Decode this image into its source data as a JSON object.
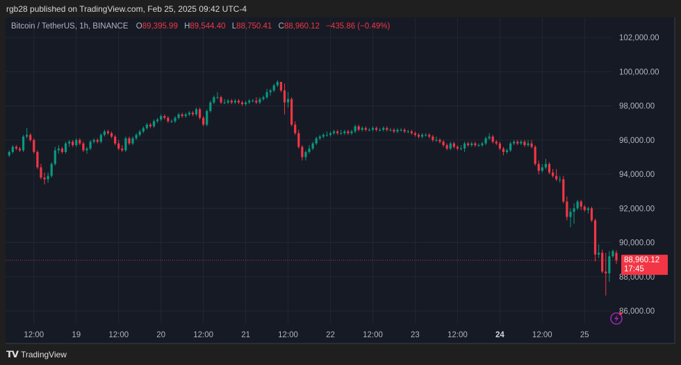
{
  "header": {
    "published": "rgb28 published on TradingView.com, Feb 25, 2025 09:42 UTC-4"
  },
  "legend": {
    "symbol": "Bitcoin / TetherUS, 1h, BINANCE",
    "o_label": "O",
    "o": "89,395.99",
    "h_label": "H",
    "h": "89,544.40",
    "l_label": "L",
    "l": "88,750.41",
    "c_label": "C",
    "c": "88,960.12",
    "change": "−435.86 (−0.49%)"
  },
  "price_label": {
    "price": "88,960.12",
    "countdown": "17:45"
  },
  "footer": {
    "brand": "TradingView",
    "logo_text": "TV"
  },
  "colors": {
    "up": "#089981",
    "down": "#f23645",
    "background": "#161a25",
    "grid": "#232734",
    "alert_icon": "#9c27b0"
  },
  "icons": {
    "alert": "lightning-alert-icon"
  },
  "chart_data": {
    "type": "candlestick",
    "title": "Bitcoin / TetherUS, 1h, BINANCE",
    "interval": "1h",
    "ylim": [
      85000,
      103000
    ],
    "y_ticks": [
      86000,
      88000,
      90000,
      92000,
      94000,
      96000,
      98000,
      100000,
      102000
    ],
    "y_tick_labels": [
      "86,000.00",
      "88,000.00",
      "90,000.00",
      "92,000.00",
      "94,000.00",
      "96,000.00",
      "98,000.00",
      "100,000.00",
      "102,000.00"
    ],
    "x_tick_labels": [
      "12:00",
      "19",
      "12:00",
      "20",
      "12:00",
      "21",
      "12:00",
      "22",
      "12:00",
      "23",
      "12:00",
      "24",
      "12:00",
      "25"
    ],
    "x_tick_bold": "24",
    "grid": true,
    "last_price": 88960.12,
    "ohlc": [
      [
        95100,
        95400,
        95000,
        95300
      ],
      [
        95300,
        95700,
        95200,
        95600
      ],
      [
        95600,
        95700,
        95400,
        95500
      ],
      [
        95500,
        95600,
        95300,
        95400
      ],
      [
        95400,
        96300,
        95300,
        96200
      ],
      [
        96200,
        96700,
        96100,
        96300
      ],
      [
        96300,
        96400,
        95900,
        96000
      ],
      [
        96000,
        96100,
        95200,
        95300
      ],
      [
        95300,
        95400,
        94300,
        94400
      ],
      [
        94400,
        94600,
        93700,
        93800
      ],
      [
        93800,
        94100,
        93400,
        93700
      ],
      [
        93700,
        94100,
        93500,
        93900
      ],
      [
        93900,
        94700,
        93800,
        94600
      ],
      [
        94600,
        95600,
        94500,
        95400
      ],
      [
        95400,
        95700,
        95200,
        95500
      ],
      [
        95500,
        95600,
        95200,
        95300
      ],
      [
        95300,
        95900,
        95200,
        95800
      ],
      [
        95800,
        96000,
        95600,
        95900
      ],
      [
        95900,
        96000,
        95600,
        95700
      ],
      [
        95700,
        96100,
        95600,
        96000
      ],
      [
        96000,
        96100,
        95700,
        95800
      ],
      [
        95800,
        95900,
        95300,
        95400
      ],
      [
        95400,
        95600,
        95200,
        95500
      ],
      [
        95500,
        96000,
        95400,
        95900
      ],
      [
        95900,
        96100,
        95800,
        96000
      ],
      [
        96000,
        96100,
        95800,
        95900
      ],
      [
        95900,
        96400,
        95800,
        96300
      ],
      [
        96300,
        96600,
        96200,
        96500
      ],
      [
        96500,
        96600,
        96300,
        96400
      ],
      [
        96400,
        96500,
        96100,
        96200
      ],
      [
        96200,
        96300,
        95700,
        95800
      ],
      [
        95800,
        96000,
        95400,
        95500
      ],
      [
        95500,
        95700,
        95300,
        95400
      ],
      [
        95400,
        96200,
        95300,
        96100
      ],
      [
        96100,
        96200,
        95700,
        95800
      ],
      [
        95800,
        96200,
        95700,
        96100
      ],
      [
        96100,
        96400,
        96000,
        96300
      ],
      [
        96300,
        96600,
        96200,
        96500
      ],
      [
        96500,
        96800,
        96400,
        96700
      ],
      [
        96700,
        97000,
        96600,
        96900
      ],
      [
        96900,
        97000,
        96700,
        96800
      ],
      [
        96800,
        97200,
        96700,
        97100
      ],
      [
        97100,
        97300,
        97000,
        97200
      ],
      [
        97200,
        97500,
        97100,
        97400
      ],
      [
        97400,
        97500,
        97200,
        97300
      ],
      [
        97300,
        97400,
        97000,
        97100
      ],
      [
        97100,
        97200,
        97000,
        97100
      ],
      [
        97100,
        97400,
        97000,
        97300
      ],
      [
        97300,
        97600,
        97200,
        97500
      ],
      [
        97500,
        97600,
        97300,
        97400
      ],
      [
        97400,
        97600,
        97300,
        97500
      ],
      [
        97500,
        97700,
        97400,
        97600
      ],
      [
        97600,
        97700,
        97400,
        97500
      ],
      [
        97500,
        97900,
        97400,
        97800
      ],
      [
        97800,
        97900,
        97200,
        97300
      ],
      [
        97300,
        97400,
        96800,
        96900
      ],
      [
        96900,
        97800,
        96800,
        97700
      ],
      [
        97700,
        98300,
        97600,
        98200
      ],
      [
        98200,
        98600,
        98100,
        98500
      ],
      [
        98500,
        98800,
        98400,
        98500
      ],
      [
        98500,
        98600,
        98100,
        98200
      ],
      [
        98200,
        98400,
        98100,
        98200
      ],
      [
        98200,
        98400,
        98100,
        98300
      ],
      [
        98300,
        98400,
        98100,
        98200
      ],
      [
        98200,
        98400,
        98100,
        98300
      ],
      [
        98300,
        98400,
        98100,
        98200
      ],
      [
        98200,
        98300,
        98000,
        98100
      ],
      [
        98100,
        98300,
        98000,
        98200
      ],
      [
        98200,
        98400,
        98100,
        98300
      ],
      [
        98300,
        98400,
        98200,
        98300
      ],
      [
        98300,
        98500,
        98100,
        98200
      ],
      [
        98200,
        98500,
        98100,
        98400
      ],
      [
        98400,
        98600,
        98300,
        98500
      ],
      [
        98500,
        99000,
        98400,
        98800
      ],
      [
        98800,
        99000,
        98600,
        98900
      ],
      [
        98900,
        99300,
        98800,
        99200
      ],
      [
        99200,
        99500,
        99100,
        99400
      ],
      [
        99400,
        99400,
        98800,
        98900
      ],
      [
        98900,
        99300,
        97500,
        98200
      ],
      [
        98200,
        98800,
        97900,
        98400
      ],
      [
        98400,
        98500,
        96800,
        96900
      ],
      [
        96900,
        97100,
        96300,
        96400
      ],
      [
        96400,
        96600,
        95500,
        95600
      ],
      [
        95600,
        95700,
        94800,
        95000
      ],
      [
        95000,
        95400,
        94800,
        95300
      ],
      [
        95300,
        95700,
        95200,
        95500
      ],
      [
        95500,
        95900,
        95400,
        95800
      ],
      [
        95800,
        96200,
        95700,
        96100
      ],
      [
        96100,
        96300,
        96000,
        96200
      ],
      [
        96200,
        96400,
        96100,
        96300
      ],
      [
        96300,
        96500,
        96200,
        96300
      ],
      [
        96300,
        96500,
        96200,
        96400
      ],
      [
        96400,
        96600,
        96300,
        96500
      ],
      [
        96500,
        96600,
        96300,
        96400
      ],
      [
        96400,
        96600,
        96300,
        96400
      ],
      [
        96400,
        96600,
        96300,
        96500
      ],
      [
        96500,
        96600,
        96300,
        96400
      ],
      [
        96400,
        96600,
        96300,
        96500
      ],
      [
        96500,
        96900,
        96400,
        96800
      ],
      [
        96800,
        96900,
        96500,
        96600
      ],
      [
        96600,
        96800,
        96500,
        96700
      ],
      [
        96700,
        96800,
        96500,
        96600
      ],
      [
        96600,
        96700,
        96500,
        96600
      ],
      [
        96600,
        96800,
        96500,
        96700
      ],
      [
        96700,
        96800,
        96500,
        96600
      ],
      [
        96600,
        96700,
        96500,
        96600
      ],
      [
        96600,
        96800,
        96500,
        96700
      ],
      [
        96700,
        96800,
        96500,
        96600
      ],
      [
        96600,
        96700,
        96500,
        96600
      ],
      [
        96600,
        96700,
        96400,
        96500
      ],
      [
        96500,
        96700,
        96400,
        96600
      ],
      [
        96600,
        96700,
        96500,
        96600
      ],
      [
        96600,
        96700,
        96400,
        96500
      ],
      [
        96500,
        96600,
        96400,
        96500
      ],
      [
        96500,
        96600,
        96300,
        96400
      ],
      [
        96400,
        96500,
        96200,
        96300
      ],
      [
        96300,
        96400,
        96100,
        96200
      ],
      [
        96200,
        96400,
        96100,
        96300
      ],
      [
        96300,
        96400,
        96200,
        96300
      ],
      [
        96300,
        96400,
        96100,
        96200
      ],
      [
        96200,
        96300,
        95900,
        96000
      ],
      [
        96000,
        96200,
        95900,
        96000
      ],
      [
        96000,
        96100,
        95800,
        95900
      ],
      [
        95900,
        96000,
        95600,
        95700
      ],
      [
        95700,
        95800,
        95400,
        95500
      ],
      [
        95500,
        95900,
        95400,
        95800
      ],
      [
        95800,
        95900,
        95500,
        95600
      ],
      [
        95600,
        95700,
        95400,
        95500
      ],
      [
        95500,
        95700,
        95400,
        95500
      ],
      [
        95500,
        95900,
        95300,
        95800
      ],
      [
        95800,
        95900,
        95600,
        95700
      ],
      [
        95700,
        95900,
        95600,
        95800
      ],
      [
        95800,
        95900,
        95600,
        95700
      ],
      [
        95700,
        95800,
        95600,
        95700
      ],
      [
        95700,
        95900,
        95600,
        95800
      ],
      [
        95800,
        96200,
        95700,
        96100
      ],
      [
        96100,
        96400,
        96000,
        96200
      ],
      [
        96200,
        96300,
        95800,
        95900
      ],
      [
        95900,
        96000,
        95700,
        95800
      ],
      [
        95800,
        95900,
        95400,
        95500
      ],
      [
        95500,
        95600,
        95100,
        95300
      ],
      [
        95300,
        95500,
        95200,
        95400
      ],
      [
        95400,
        95900,
        95300,
        95800
      ],
      [
        95800,
        96000,
        95700,
        95900
      ],
      [
        95900,
        96000,
        95700,
        95800
      ],
      [
        95800,
        96000,
        95700,
        95900
      ],
      [
        95900,
        96000,
        95600,
        95700
      ],
      [
        95700,
        96000,
        95600,
        95800
      ],
      [
        95800,
        96000,
        95500,
        95600
      ],
      [
        95600,
        95700,
        94500,
        94600
      ],
      [
        94600,
        94800,
        94000,
        94200
      ],
      [
        94200,
        94600,
        94100,
        94400
      ],
      [
        94400,
        94900,
        94300,
        94600
      ],
      [
        94600,
        94700,
        94000,
        94100
      ],
      [
        94100,
        94300,
        93800,
        93900
      ],
      [
        93900,
        94300,
        93600,
        93700
      ],
      [
        93700,
        93900,
        93500,
        93700
      ],
      [
        93700,
        93900,
        92300,
        92400
      ],
      [
        92400,
        92700,
        91300,
        91500
      ],
      [
        91500,
        92000,
        90900,
        91800
      ],
      [
        91800,
        92300,
        91100,
        92000
      ],
      [
        92000,
        92500,
        91900,
        92400
      ],
      [
        92400,
        92500,
        91900,
        92100
      ],
      [
        92100,
        92200,
        91800,
        91900
      ],
      [
        91900,
        92100,
        91700,
        92000
      ],
      [
        92000,
        92100,
        91200,
        91300
      ],
      [
        91300,
        91400,
        88900,
        89300
      ],
      [
        89300,
        89900,
        89100,
        89400
      ],
      [
        89400,
        89600,
        88200,
        88300
      ],
      [
        88300,
        89400,
        86900,
        88200
      ],
      [
        88200,
        89500,
        87700,
        89200
      ],
      [
        89200,
        89600,
        89100,
        89500
      ],
      [
        89395.99,
        89544.4,
        88750.41,
        88960.12
      ]
    ]
  }
}
